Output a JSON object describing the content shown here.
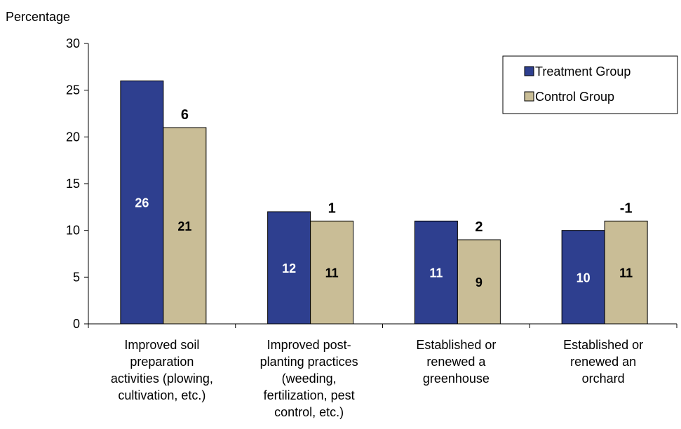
{
  "chart_data": {
    "type": "bar",
    "ylabel": "Percentage",
    "ylim": [
      0,
      30
    ],
    "yticks": [
      0,
      5,
      10,
      15,
      20,
      25,
      30
    ],
    "categories": [
      [
        "Improved soil",
        "preparation",
        "activities (plowing,",
        "cultivation, etc.)"
      ],
      [
        "Improved post-",
        "planting practices",
        "(weeding,",
        "fertilization, pest",
        "control, etc.)"
      ],
      [
        "Established or",
        "renewed a",
        "greenhouse"
      ],
      [
        "Established or",
        "renewed an",
        "orchard"
      ]
    ],
    "series": [
      {
        "name": "Treatment Group",
        "color": "#2e3f8f",
        "label_color": "#ffffff",
        "values": [
          26,
          12,
          11,
          10
        ]
      },
      {
        "name": "Control Group",
        "color": "#c9bd96",
        "label_color": "#000000",
        "values": [
          21,
          11,
          9,
          11
        ]
      }
    ],
    "differences": [
      "6",
      "1",
      "2",
      "-1"
    ],
    "legend": {
      "placement": "top-right"
    },
    "grid": false
  }
}
